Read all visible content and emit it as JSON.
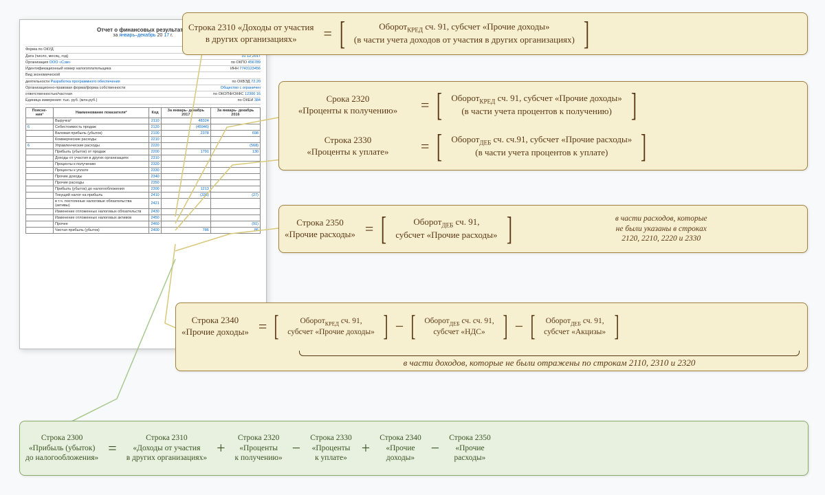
{
  "colors": {
    "box_bg": "#f7f0d0",
    "box_border": "#a08040",
    "box_text": "#5a3815",
    "green_bg": "#e8f0e0",
    "green_border": "#8aaa6a",
    "green_text": "#3a5220",
    "doc_blue": "#0066cc",
    "callout_yellow": "#d8c87a",
    "callout_green": "#a8c890"
  },
  "doc": {
    "title": "Отчет о финансовых результатах",
    "subtitle_pre": "за ",
    "subtitle_period": "январь–декабрь",
    "subtitle_year_pre": " 20 ",
    "subtitle_year": "17",
    "subtitle_year_post": " г.",
    "codes_label": "Коды",
    "form_okud": "0710002",
    "date_label": "Дата (число, месяц, год)",
    "date_d": "31",
    "date_m": "12",
    "date_y": "2017",
    "org_label": "Организация",
    "org_value": "ООО «Сэм»",
    "okpo": "456789",
    "inn_label": "Идентификационный номер налогоплательщика",
    "inn": "7743123456",
    "activity_label": "Вид экономической",
    "activity_label2": "деятельности",
    "activity_value": "Разработка программного обеспечения",
    "okved": "72.20",
    "form_label": "Организационно-правовая форма/форма собственности",
    "form_value": "Общество с ограничен",
    "resp_label": "ответственностью/частная",
    "okopf": "12300",
    "okfs": "16",
    "unit_label": "Единица измерения: тыс. руб. (млн.руб.)",
    "okei": "384",
    "table": {
      "headers": [
        "Поясне-\nния¹",
        "Наименование показателя²",
        "Код",
        "За январь-\nдекабрь\n2017",
        "За январь-\nдекабрь\n2016"
      ],
      "rows": [
        [
          "",
          "Выручка³",
          "2110",
          "48324",
          ""
        ],
        [
          "6",
          "Себестоимость продаж",
          "2120",
          "(45946)",
          ""
        ],
        [
          "",
          "Валовая прибыль (убыток)",
          "2100",
          "2378",
          "698"
        ],
        [
          "",
          "Коммерческие расходы",
          "2210",
          "",
          ""
        ],
        [
          "6",
          "Управленческие расходы",
          "2220",
          "",
          "(568)"
        ],
        [
          "",
          "    Прибыль (убыток) от продаж",
          "2200",
          "1791",
          "130"
        ],
        [
          "",
          "Доходы от участия в других организациях",
          "2310",
          "",
          ""
        ],
        [
          "",
          "Проценты к получению",
          "2320",
          "",
          ""
        ],
        [
          "",
          "Проценты к уплате",
          "2330",
          "",
          ""
        ],
        [
          "",
          "Прочие доходы",
          "2340",
          "",
          ""
        ],
        [
          "",
          "Прочие расходы",
          "2350",
          "",
          ""
        ],
        [
          "",
          "    Прибыль (убыток) до налогообложения",
          "2300",
          "1213",
          ""
        ],
        [
          "",
          "Текущий налог на прибыль",
          "2410",
          "(336)",
          "(27)"
        ],
        [
          "",
          "    в т.ч. постоянные налоговые обязательства\n(активы)",
          "2421",
          "",
          ""
        ],
        [
          "",
          "Изменение отложенных налоговых обязательств",
          "2430",
          "",
          ""
        ],
        [
          "",
          "Изменение отложенных налоговых активов",
          "2450",
          "",
          ""
        ],
        [
          "",
          "Прочее",
          "2460",
          "",
          "(91)"
        ],
        [
          "",
          "    Чистая прибыль (убыток)",
          "2400",
          "786",
          "86"
        ]
      ]
    }
  },
  "f1": {
    "left1": "Строка 2310 «Доходы от участия",
    "left2": "в других организациях»",
    "right1_pre": "Оборот",
    "right1_sub": "КРЕД",
    "right1_post": " сч. 91, субсчет «Прочие доходы»",
    "right2": "(в части учета доходов от участия в других организациях)"
  },
  "f2": {
    "left1": "Срока 2320",
    "left2": "«Проценты к получению»",
    "right1_pre": "Оборот",
    "right1_sub": "КРЕД",
    "right1_post": " сч. 91, субсчет «Прочие доходы»",
    "right2": "(в части учета процентов к получению)"
  },
  "f3": {
    "left1": "Строка 2330",
    "left2": "«Проценты к уплате»",
    "right1_pre": "Оборот",
    "right1_sub": "ДЕБ",
    "right1_post": " сч. сч.91, субсчет «Прочие расходы»",
    "right2": "(в части учета процентов к уплате)"
  },
  "f4": {
    "left1": "Строка 2350",
    "left2": "«Прочие расходы»",
    "mid1_pre": "Оборот",
    "mid1_sub": "ДЕБ",
    "mid1_post": " сч. 91,",
    "mid2": "субсчет «Прочие расходы»",
    "note1": "в части расходов, которые",
    "note2": "не были указаны в строках",
    "note3": "2120, 2210, 2220 и 2330"
  },
  "f5": {
    "left1": "Строка 2340",
    "left2": "«Прочие доходы»",
    "a1_pre": "Оборот",
    "a1_sub": "КРЕД",
    "a1_post": " сч. 91,",
    "a2": "субсчет «Прочие доходы»",
    "b1_pre": "Оборот",
    "b1_sub": "ДЕБ",
    "b1_post": " сч. сч. 91,",
    "b2": "субсчет «НДС»",
    "c1_pre": "Оборот",
    "c1_sub": "ДЕБ",
    "c1_post": " сч. 91,",
    "c2": "субсчет «Акцизы»",
    "brace_label": "в части доходов, которые не были отражены по строкам 2110, 2310 и 2320"
  },
  "f6": {
    "t1a": "Строка 2300",
    "t1b": "«Прибыль (убыток)",
    "t1c": "до налогообложения»",
    "t2a": "Строка 2310",
    "t2b": "«Доходы от участия",
    "t2c": "в других организациях»",
    "t3a": "Строка 2320",
    "t3b": "«Проценты",
    "t3c": "к получению»",
    "t4a": "Строка 2330",
    "t4b": "«Проценты",
    "t4c": "к уплате»",
    "t5a": "Строка 2340",
    "t5b": "«Прочие",
    "t5c": "доходы»",
    "t6a": "Строка 2350",
    "t6b": "«Прочие",
    "t6c": "расходы»"
  }
}
